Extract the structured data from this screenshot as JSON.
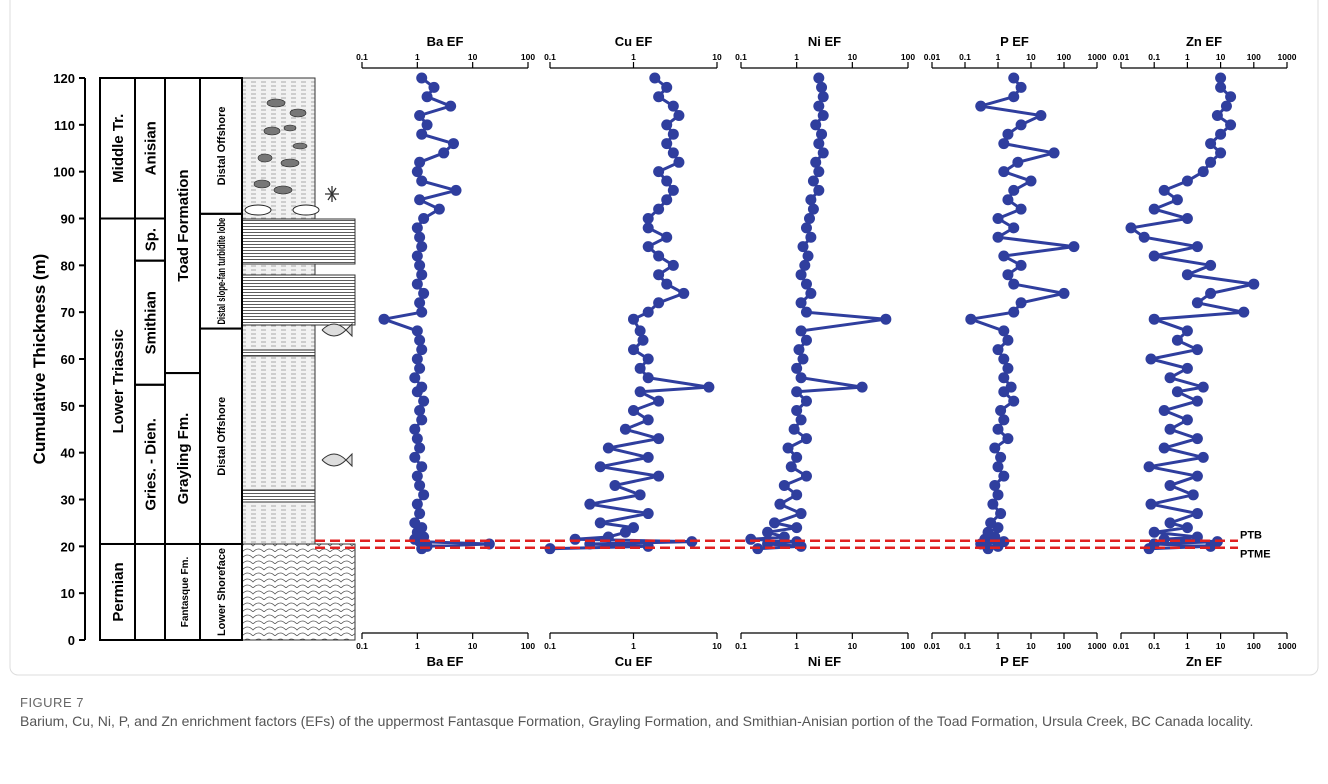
{
  "strat_column": {
    "ylabel": "Cumulative Thickness (m)",
    "ylim": [
      0,
      120
    ],
    "yticks": [
      0,
      10,
      20,
      30,
      40,
      50,
      60,
      70,
      80,
      90,
      100,
      110,
      120
    ],
    "columns": [
      {
        "units": [
          {
            "label": "Permian",
            "bottom": 0,
            "top": 20.5
          },
          {
            "label": "Lower Triassic",
            "bottom": 20.5,
            "top": 90
          },
          {
            "label": "Middle Tr.",
            "bottom": 90,
            "top": 120
          }
        ]
      },
      {
        "units": [
          {
            "label": "Gries. - Dien.",
            "bottom": 20.5,
            "top": 54.5
          },
          {
            "label": "Smithian",
            "bottom": 54.5,
            "top": 81
          },
          {
            "label": "Sp.",
            "bottom": 81,
            "top": 90
          },
          {
            "label": "Anisian",
            "bottom": 90,
            "top": 120
          }
        ]
      },
      {
        "units": [
          {
            "label": "Fantasque Fm.",
            "bottom": 0,
            "top": 20.5
          },
          {
            "label": "Grayling Fm.",
            "bottom": 20.5,
            "top": 57
          },
          {
            "label": "Toad Formation",
            "bottom": 57,
            "top": 120
          }
        ]
      },
      {
        "units": [
          {
            "label": "Lower Shoreface",
            "bottom": 0,
            "top": 20.5
          },
          {
            "label": "Distal Offshore",
            "bottom": 20.5,
            "top": 66.5
          },
          {
            "label": "Distal slope-fan turbidite lobe",
            "bottom": 66.5,
            "top": 91
          },
          {
            "label": "Distal Offshore",
            "bottom": 91,
            "top": 120
          }
        ]
      }
    ]
  },
  "chart_data": [
    {
      "type": "line",
      "title": "Ba EF",
      "log_x": true,
      "xlim": [
        0.1,
        100
      ],
      "xticks": [
        0.1,
        1,
        10,
        100
      ],
      "ylim": [
        0,
        120
      ],
      "color": "#2f3e9e",
      "marker": "circle",
      "y": [
        19.5,
        20,
        20.5,
        21,
        21.5,
        22,
        23,
        24,
        25,
        27,
        29,
        31,
        33,
        35,
        37,
        39,
        41,
        43,
        45,
        47,
        49,
        51,
        53,
        54,
        56,
        58,
        60,
        62,
        64,
        66,
        68.5,
        70,
        72,
        74,
        76,
        78,
        80,
        82,
        84,
        86,
        88,
        90,
        92,
        94,
        96,
        98,
        100,
        102,
        104,
        106,
        108,
        110,
        112,
        114,
        116,
        118,
        120
      ],
      "values": [
        1.2,
        1.5,
        20,
        1.1,
        0.9,
        1.3,
        1.0,
        1.2,
        0.9,
        1.1,
        1.0,
        1.3,
        1.1,
        1.0,
        1.2,
        0.9,
        1.1,
        1.0,
        0.9,
        1.2,
        1.1,
        1.3,
        1.0,
        1.2,
        0.9,
        1.1,
        1.0,
        1.2,
        1.1,
        1.0,
        0.25,
        1.2,
        1.1,
        1.3,
        1.0,
        1.2,
        1.1,
        1.0,
        1.2,
        1.1,
        1.0,
        1.3,
        2.5,
        1.1,
        5.0,
        1.2,
        1.0,
        1.1,
        3.0,
        4.5,
        1.2,
        1.5,
        1.1,
        4.0,
        1.5,
        2.0,
        1.2
      ]
    },
    {
      "type": "line",
      "title": "Cu EF",
      "log_x": true,
      "xlim": [
        0.1,
        10
      ],
      "xticks": [
        0.1,
        1,
        10
      ],
      "ylim": [
        0,
        120
      ],
      "color": "#2f3e9e",
      "marker": "circle",
      "y": [
        19.5,
        20,
        20.5,
        21,
        21.5,
        22,
        23,
        24,
        25,
        27,
        29,
        31,
        33,
        35,
        37,
        39,
        41,
        43,
        45,
        47,
        49,
        51,
        53,
        54,
        56,
        58,
        60,
        62,
        64,
        66,
        68.5,
        70,
        72,
        74,
        76,
        78,
        80,
        82,
        84,
        86,
        88,
        90,
        92,
        94,
        96,
        98,
        100,
        102,
        104,
        106,
        108,
        110,
        112,
        114,
        116,
        118,
        120
      ],
      "values": [
        0.1,
        1.5,
        0.3,
        5.0,
        0.2,
        0.5,
        0.8,
        1.0,
        0.4,
        1.5,
        0.3,
        1.2,
        0.6,
        2.0,
        0.4,
        1.5,
        0.5,
        2.0,
        0.8,
        1.5,
        1.0,
        2.0,
        1.2,
        8.0,
        1.5,
        1.2,
        1.5,
        1.0,
        1.3,
        1.2,
        1.0,
        1.5,
        2.0,
        4.0,
        2.5,
        2.0,
        3.0,
        2.0,
        1.5,
        2.5,
        1.5,
        1.5,
        2.0,
        2.5,
        3.0,
        2.5,
        2.0,
        3.5,
        3.0,
        2.5,
        3.0,
        2.5,
        3.5,
        3.0,
        2.0,
        2.5,
        1.8
      ]
    },
    {
      "type": "line",
      "title": "Ni EF",
      "log_x": true,
      "xlim": [
        0.1,
        100
      ],
      "xticks": [
        0.1,
        1,
        10,
        100
      ],
      "ylim": [
        0,
        120
      ],
      "color": "#2f3e9e",
      "marker": "circle",
      "y": [
        19.5,
        20,
        20.5,
        21,
        21.5,
        22,
        23,
        24,
        25,
        27,
        29,
        31,
        33,
        35,
        37,
        39,
        41,
        43,
        45,
        47,
        49,
        51,
        53,
        54,
        56,
        58,
        60,
        62,
        64,
        66,
        68.5,
        70,
        72,
        74,
        76,
        78,
        80,
        82,
        84,
        86,
        88,
        90,
        92,
        94,
        96,
        98,
        100,
        102,
        104,
        106,
        108,
        110,
        112,
        114,
        116,
        118,
        120
      ],
      "values": [
        0.2,
        1.2,
        0.3,
        1.0,
        0.15,
        0.6,
        0.3,
        1.0,
        0.4,
        1.2,
        0.5,
        1.0,
        0.6,
        1.5,
        0.8,
        1.0,
        0.7,
        1.5,
        0.9,
        1.2,
        1.0,
        1.5,
        1.0,
        15,
        1.2,
        1.0,
        1.3,
        1.1,
        1.5,
        1.2,
        40,
        1.5,
        1.2,
        1.8,
        1.5,
        1.2,
        1.4,
        1.6,
        1.3,
        1.8,
        1.5,
        1.7,
        2.0,
        1.8,
        2.5,
        2.0,
        2.5,
        2.2,
        3.0,
        2.5,
        2.8,
        2.2,
        3.0,
        2.5,
        3.0,
        2.8,
        2.5
      ]
    },
    {
      "type": "line",
      "title": "P EF",
      "log_x": true,
      "xlim": [
        0.01,
        1000
      ],
      "xticks": [
        0.01,
        0.1,
        1,
        10,
        100,
        1000
      ],
      "ylim": [
        0,
        120
      ],
      "color": "#2f3e9e",
      "marker": "circle",
      "y": [
        19.5,
        20,
        20.5,
        21,
        21.5,
        22,
        23,
        24,
        25,
        27,
        29,
        31,
        33,
        35,
        37,
        39,
        41,
        43,
        45,
        47,
        49,
        51,
        53,
        54,
        56,
        58,
        60,
        62,
        64,
        66,
        68.5,
        70,
        72,
        74,
        76,
        78,
        80,
        82,
        84,
        86,
        88,
        90,
        92,
        94,
        96,
        98,
        100,
        102,
        104,
        106,
        108,
        110,
        112,
        114,
        116,
        118,
        120
      ],
      "values": [
        0.5,
        1.0,
        0.3,
        1.5,
        0.4,
        0.8,
        0.5,
        1.0,
        0.6,
        1.2,
        0.7,
        1.0,
        0.8,
        1.5,
        1.0,
        1.2,
        0.8,
        2.0,
        1.0,
        1.5,
        1.2,
        3.0,
        1.5,
        2.5,
        1.5,
        2.0,
        1.5,
        1.0,
        2.0,
        1.5,
        0.15,
        3.0,
        5.0,
        100,
        3.0,
        2.0,
        5.0,
        1.5,
        200,
        1.0,
        3.0,
        1.0,
        5.0,
        2.0,
        3.0,
        10,
        1.5,
        4.0,
        50,
        1.5,
        2.0,
        5.0,
        20,
        0.3,
        3.0,
        5.0,
        3.0
      ]
    },
    {
      "type": "line",
      "title": "Zn EF",
      "log_x": true,
      "xlim": [
        0.01,
        1000
      ],
      "xticks": [
        0.01,
        0.1,
        1,
        10,
        100,
        1000
      ],
      "ylim": [
        0,
        120
      ],
      "color": "#2f3e9e",
      "marker": "circle",
      "y": [
        19.5,
        20,
        20.5,
        21,
        21.5,
        22,
        23,
        24,
        25,
        27,
        29,
        31,
        33,
        35,
        37,
        39,
        41,
        43,
        45,
        47,
        49,
        51,
        53,
        54,
        56,
        58,
        60,
        62,
        64,
        66,
        68.5,
        70,
        72,
        74,
        76,
        78,
        80,
        82,
        84,
        86,
        88,
        90,
        92,
        94,
        96,
        98,
        100,
        102,
        104,
        106,
        108,
        110,
        112,
        114,
        116,
        118,
        120
      ],
      "values": [
        0.07,
        5.0,
        0.1,
        8.0,
        0.2,
        2.0,
        0.1,
        1.0,
        0.3,
        2.0,
        0.08,
        1.5,
        0.3,
        2.0,
        0.07,
        3.0,
        0.2,
        2.0,
        0.3,
        1.0,
        0.2,
        2.0,
        0.5,
        3.0,
        0.3,
        1.0,
        0.08,
        2.0,
        0.5,
        1.0,
        0.1,
        50,
        2.0,
        5.0,
        100,
        1.0,
        5.0,
        0.1,
        2.0,
        0.05,
        0.02,
        1.0,
        0.1,
        0.5,
        0.2,
        1.0,
        3.0,
        5.0,
        10,
        5.0,
        10,
        20,
        8.0,
        15,
        20,
        10,
        10
      ]
    }
  ],
  "boundaries": [
    {
      "label": "PTB",
      "value": 21.2
    },
    {
      "label": "PTME",
      "value": 19.7
    }
  ],
  "caption": {
    "label": "FIGURE 7",
    "text": "Barium, Cu, Ni, P, and Zn enrichment factors (EFs) of the uppermost Fantasque Formation, Grayling Formation, and Smithian-Anisian portion of the Toad Formation, Ursula Creek, BC Canada locality."
  }
}
